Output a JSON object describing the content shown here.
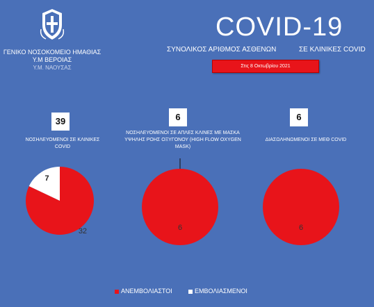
{
  "header": {
    "hospital_line1": "ΓΕΝΙΚΟ ΝΟΣΟΚΟΜΕΙΟ ΗΜΑΘΙΑΣ",
    "hospital_line2": "Υ.Μ ΒΕΡΟΙΑΣ",
    "hospital_line3": "Υ.Μ. ΝΑΟΥΣΑΣ",
    "title": "COVID-19",
    "subtitle_part1": "ΣΥΝΟΛΙΚΟΣ ΑΡΙΘΜΟΣ ΑΣΘΕΝΩΝ",
    "subtitle_part2": "ΣΕ ΚΛΙΝΙΚΕΣ COVID",
    "date": "Στις 8 Οκτωβρίου 2021"
  },
  "colors": {
    "background": "#4a70b8",
    "unvaccinated": "#e8141a",
    "vaccinated": "#ffffff",
    "date_box": "#e8141a"
  },
  "chart_data": [
    {
      "type": "pie",
      "total": "39",
      "category": [
        "ΝΟΣΗΛΕΥΟΜΕΝΟΙ ΣΕ ΚΛΙΝΙΚΕΣ",
        "COVID"
      ],
      "slices": [
        {
          "name": "ΑΝΕΜΒΟΛΙΑΣΤΟΙ",
          "value": 32,
          "label": "32"
        },
        {
          "name": "ΕΜΒΟΛΙΑΣΜΕΝΟΙ",
          "value": 7,
          "label": "7"
        }
      ]
    },
    {
      "type": "pie",
      "total": "6",
      "category": [
        "ΝΟΣΗΛΕΥΟΜΕΝΟΙ ΣΕ ΑΠΛΕΣ ΚΛΙΝΕΣ ΜΕ ΜΑΣΚΑ",
        "ΥΨΗΛΗΣ ΡΟΗΣ ΟΞΥΓΟΝΟΥ (HIGH FLOW OXYGEN",
        "MASK)"
      ],
      "slices": [
        {
          "name": "ΑΝΕΜΒΟΛΙΑΣΤΟΙ",
          "value": 6,
          "label": "6"
        },
        {
          "name": "ΕΜΒΟΛΙΑΣΜΕΝΟΙ",
          "value": 0,
          "label": ""
        }
      ]
    },
    {
      "type": "pie",
      "total": "6",
      "category": [
        "ΔΙΑΣΩΛΗΝΩΜΕΝΟΙ ΣΕ ΜΕΘ COVID"
      ],
      "slices": [
        {
          "name": "ΑΝΕΜΒΟΛΙΑΣΤΟΙ",
          "value": 6,
          "label": "6"
        },
        {
          "name": "ΕΜΒΟΛΙΑΣΜΕΝΟΙ",
          "value": 0,
          "label": ""
        }
      ]
    }
  ],
  "legend": {
    "items": [
      {
        "label": "ΑΝΕΜΒΟΛΙΑΣΤΟΙ",
        "color": "#e8141a"
      },
      {
        "label": "ΕΜΒΟΛΙΑΣΜΕΝΟΙ",
        "color": "#ffffff"
      }
    ],
    "position": "bottom"
  }
}
